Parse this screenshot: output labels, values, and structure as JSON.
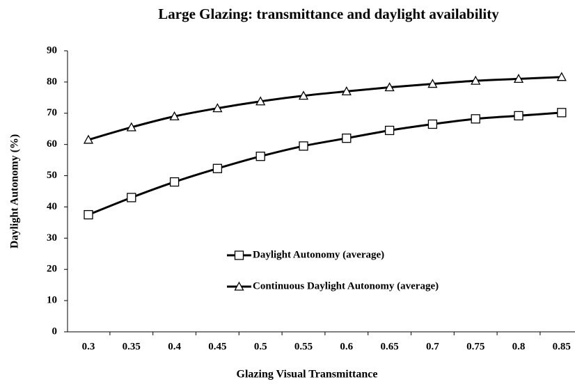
{
  "chart_data": {
    "type": "line",
    "title": "Large Glazing: transmittance and daylight availability",
    "x_label": "Glazing Visual Transmittance",
    "y_label": "Daylight Autonomy (%)",
    "categories": [
      "0.3",
      "0.35",
      "0.4",
      "0.45",
      "0.5",
      "0.55",
      "0.6",
      "0.65",
      "0.7",
      "0.75",
      "0.8",
      "0.85"
    ],
    "series": [
      {
        "name": "Daylight Autonomy (average)",
        "color": "#000000",
        "marker": "square",
        "values": [
          37.5,
          43,
          48,
          52.3,
          56.2,
          59.5,
          62,
          64.5,
          66.5,
          68.2,
          69.2,
          70.2
        ]
      },
      {
        "name": "Continuous Daylight Autonomy (average)",
        "color": "#000000",
        "marker": "triangle",
        "values": [
          61.5,
          65.5,
          69,
          71.6,
          73.8,
          75.6,
          77,
          78.3,
          79.4,
          80.4,
          81,
          81.6
        ]
      }
    ],
    "ylim": [
      0,
      90
    ],
    "yticks": [
      0,
      10,
      20,
      30,
      40,
      50,
      60,
      70,
      80,
      90
    ],
    "grid": false,
    "smooth": true
  }
}
